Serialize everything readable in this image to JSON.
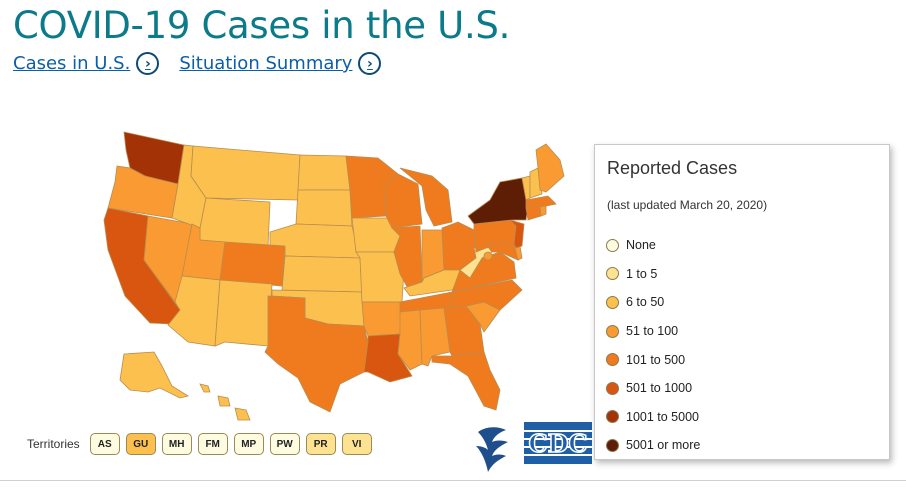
{
  "header": {
    "title": "COVID-19 Cases in the U.S.",
    "links": [
      {
        "label": "Cases in U.S.",
        "icon": "chevron-right-circle-icon"
      },
      {
        "label": "Situation Summary",
        "icon": "chevron-right-circle-icon"
      }
    ]
  },
  "colors": {
    "none": "#fdfbe0",
    "c1_5": "#fde391",
    "c6_50": "#fcc04e",
    "c51_100": "#f99a33",
    "c101_500": "#f07b1f",
    "c501_1000": "#d8560f",
    "c1001_5000": "#a33306",
    "c5001_plus": "#5e1e05",
    "state_border": "#b98c4e"
  },
  "map": {
    "states": [
      {
        "code": "WA",
        "category": "1001 to 5000"
      },
      {
        "code": "OR",
        "category": "51 to 100"
      },
      {
        "code": "CA",
        "category": "501 to 1000"
      },
      {
        "code": "NV",
        "category": "51 to 100"
      },
      {
        "code": "ID",
        "category": "6 to 50"
      },
      {
        "code": "MT",
        "category": "6 to 50"
      },
      {
        "code": "WY",
        "category": "6 to 50"
      },
      {
        "code": "UT",
        "category": "51 to 100"
      },
      {
        "code": "AZ",
        "category": "6 to 50"
      },
      {
        "code": "CO",
        "category": "101 to 500"
      },
      {
        "code": "NM",
        "category": "6 to 50"
      },
      {
        "code": "ND",
        "category": "6 to 50"
      },
      {
        "code": "SD",
        "category": "6 to 50"
      },
      {
        "code": "NE",
        "category": "6 to 50"
      },
      {
        "code": "KS",
        "category": "6 to 50"
      },
      {
        "code": "OK",
        "category": "6 to 50"
      },
      {
        "code": "TX",
        "category": "101 to 500"
      },
      {
        "code": "MN",
        "category": "101 to 500"
      },
      {
        "code": "IA",
        "category": "6 to 50"
      },
      {
        "code": "MO",
        "category": "6 to 50"
      },
      {
        "code": "AR",
        "category": "51 to 100"
      },
      {
        "code": "LA",
        "category": "501 to 1000"
      },
      {
        "code": "WI",
        "category": "101 to 500"
      },
      {
        "code": "IL",
        "category": "101 to 500"
      },
      {
        "code": "MI",
        "category": "101 to 500"
      },
      {
        "code": "IN",
        "category": "51 to 100"
      },
      {
        "code": "OH",
        "category": "101 to 500"
      },
      {
        "code": "KY",
        "category": "6 to 50"
      },
      {
        "code": "TN",
        "category": "101 to 500"
      },
      {
        "code": "MS",
        "category": "51 to 100"
      },
      {
        "code": "AL",
        "category": "51 to 100"
      },
      {
        "code": "GA",
        "category": "101 to 500"
      },
      {
        "code": "FL",
        "category": "101 to 500"
      },
      {
        "code": "SC",
        "category": "51 to 100"
      },
      {
        "code": "NC",
        "category": "101 to 500"
      },
      {
        "code": "VA",
        "category": "101 to 500"
      },
      {
        "code": "WV",
        "category": "1 to 5"
      },
      {
        "code": "PA",
        "category": "101 to 500"
      },
      {
        "code": "NY",
        "category": "5001 or more"
      },
      {
        "code": "VT",
        "category": "6 to 50"
      },
      {
        "code": "NH",
        "category": "6 to 50"
      },
      {
        "code": "ME",
        "category": "51 to 100"
      },
      {
        "code": "MA",
        "category": "101 to 500"
      },
      {
        "code": "CT",
        "category": "101 to 500"
      },
      {
        "code": "RI",
        "category": "51 to 100"
      },
      {
        "code": "NJ",
        "category": "501 to 1000"
      },
      {
        "code": "DE",
        "category": "51 to 100"
      },
      {
        "code": "MD",
        "category": "101 to 500"
      },
      {
        "code": "DC",
        "category": "51 to 100"
      },
      {
        "code": "AK",
        "category": "6 to 50"
      },
      {
        "code": "HI",
        "category": "6 to 50"
      }
    ]
  },
  "territories": {
    "label": "Territories",
    "items": [
      {
        "code": "AS",
        "category": "None"
      },
      {
        "code": "GU",
        "category": "6 to 50"
      },
      {
        "code": "MH",
        "category": "None"
      },
      {
        "code": "FM",
        "category": "None"
      },
      {
        "code": "MP",
        "category": "None"
      },
      {
        "code": "PW",
        "category": "None"
      },
      {
        "code": "PR",
        "category": "1 to 5"
      },
      {
        "code": "VI",
        "category": "1 to 5"
      }
    ]
  },
  "legend": {
    "title": "Reported Cases",
    "subtitle": "(last updated March 20, 2020)",
    "items": [
      {
        "label": "None",
        "color": "#fdfbe0"
      },
      {
        "label": "1 to 5",
        "color": "#fde391"
      },
      {
        "label": "6 to 50",
        "color": "#fcc04e"
      },
      {
        "label": "51 to 100",
        "color": "#f99a33"
      },
      {
        "label": "101 to 500",
        "color": "#f07b1f"
      },
      {
        "label": "501 to 1000",
        "color": "#d8560f"
      },
      {
        "label": "1001 to 5000",
        "color": "#a33306"
      },
      {
        "label": "5001 or more",
        "color": "#5e1e05"
      }
    ]
  },
  "logos": [
    {
      "name": "hhs-eagle-logo"
    },
    {
      "name": "cdc-logo",
      "text": "CDC"
    }
  ]
}
